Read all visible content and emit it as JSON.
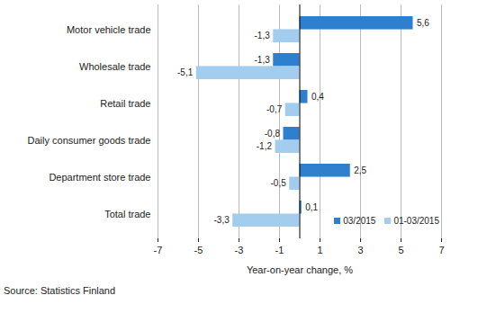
{
  "chart_data": {
    "type": "bar",
    "orientation": "horizontal",
    "categories": [
      "Motor vehicle trade",
      "Wholesale trade",
      "Retail trade",
      "Daily consumer goods trade",
      "Department store trade",
      "Total trade"
    ],
    "series": [
      {
        "name": "03/2015",
        "color": "#2f7fcf",
        "values": [
          5.6,
          -1.3,
          0.4,
          -0.8,
          2.5,
          0.1
        ],
        "value_labels": [
          "5,6",
          "-1,3",
          "0,4",
          "-0,8",
          "2,5",
          "0,1"
        ]
      },
      {
        "name": "01-03/2015",
        "color": "#a3cdee",
        "values": [
          -1.3,
          -5.1,
          -0.7,
          -1.2,
          -0.5,
          -3.3
        ],
        "value_labels": [
          "-1,3",
          "-5,1",
          "-0,7",
          "-1,2",
          "-0,5",
          "-3,3"
        ]
      }
    ],
    "xlabel": "Year-on-year change, %",
    "xlim": [
      -7,
      7
    ],
    "xticks": [
      -7,
      -5,
      -3,
      -1,
      1,
      3,
      5,
      7
    ],
    "grid": true,
    "legend": "lower right",
    "data_labels": true,
    "source": "Source: Statistics Finland"
  }
}
